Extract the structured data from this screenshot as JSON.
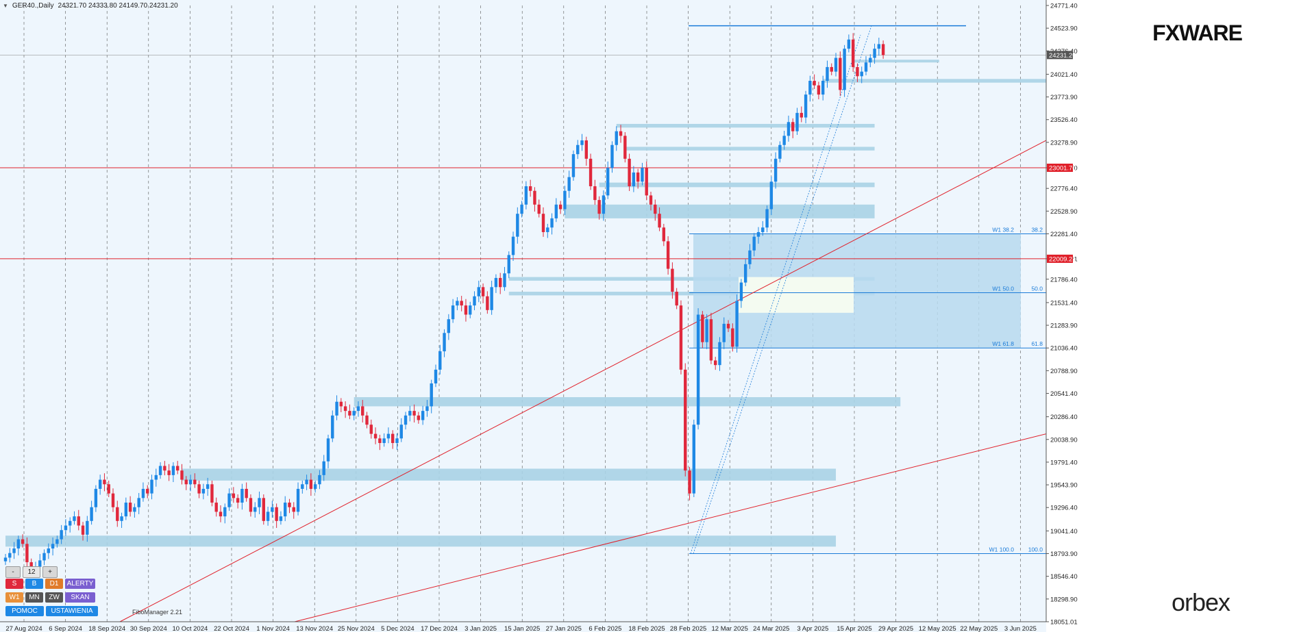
{
  "header": {
    "symbol": "GER40.,Daily",
    "ohlc": "24321.70 24333.80 24149.70 24231.20"
  },
  "colors": {
    "bull": "#1e88e5",
    "bear": "#e0283c",
    "zone": "#a9d3e6",
    "fib_zone": "#b7d9ee",
    "trend": "#e0202a",
    "fib_line": "#1a7bd8"
  },
  "price_levels": {
    "current": "24231.20",
    "level_1": "23001.70",
    "level_2": "22009.21"
  },
  "fib_labels": [
    {
      "left": "W1 38.2",
      "right": "38.2",
      "value": 22281
    },
    {
      "left": "W1 50.0",
      "right": "50.0",
      "value": 21639
    },
    {
      "left": "W1 61.8",
      "right": "61.8",
      "value": 21036
    },
    {
      "left": "W1 100.0",
      "right": "100.0",
      "value": 18794
    }
  ],
  "toolbar": {
    "minus": "-",
    "period": "12",
    "plus": "+",
    "s": "S",
    "b": "B",
    "d1": "D1",
    "alerty": "ALERTY",
    "w1": "W1",
    "mn": "MN",
    "zw": "ZW",
    "skan": "SKAN",
    "pomoc": "POMOC",
    "ustawienia": "USTAWIENIA"
  },
  "brand_top": "FXWARE",
  "brand_bottom": "orbex",
  "file_manager": "FiboManager 2.21",
  "chart_data": {
    "type": "candlestick",
    "title": "GER40.,Daily",
    "ylim": [
      18051.01,
      24771.4
    ],
    "y_ticks": [
      "24771.40",
      "24523.90",
      "24276.40",
      "24021.40",
      "23773.90",
      "23526.40",
      "23278.90",
      "23001.70",
      "22776.40",
      "22528.90",
      "22281.40",
      "22009.21",
      "21786.40",
      "21531.40",
      "21283.90",
      "21036.40",
      "20788.90",
      "20541.40",
      "20286.40",
      "20038.90",
      "19791.40",
      "19543.90",
      "19296.40",
      "19041.40",
      "18793.90",
      "18546.40",
      "18298.90",
      "18051.01"
    ],
    "x_ticks": [
      "27 Aug 2024",
      "6 Sep 2024",
      "18 Sep 2024",
      "30 Sep 2024",
      "10 Oct 2024",
      "22 Oct 2024",
      "1 Nov 2024",
      "13 Nov 2024",
      "25 Nov 2024",
      "5 Dec 2024",
      "17 Dec 2024",
      "3 Jan 2025",
      "15 Jan 2025",
      "27 Jan 2025",
      "6 Feb 2025",
      "18 Feb 2025",
      "28 Feb 2025",
      "12 Mar 2025",
      "24 Mar 2025",
      "3 Apr 2025",
      "15 Apr 2025",
      "29 Apr 2025",
      "12 May 2025",
      "22 May 2025",
      "3 Jun 2025"
    ],
    "grid": true,
    "closes": [
      18750,
      18800,
      18850,
      18950,
      18900,
      18700,
      18650,
      18650,
      18720,
      18800,
      18850,
      18900,
      18950,
      19050,
      19100,
      19150,
      19200,
      19100,
      19000,
      19150,
      19300,
      19500,
      19600,
      19550,
      19450,
      19300,
      19150,
      19200,
      19350,
      19250,
      19300,
      19400,
      19500,
      19450,
      19600,
      19650,
      19750,
      19700,
      19650,
      19750,
      19700,
      19600,
      19550,
      19600,
      19550,
      19450,
      19500,
      19550,
      19350,
      19250,
      19200,
      19300,
      19450,
      19400,
      19350,
      19500,
      19400,
      19250,
      19300,
      19400,
      19150,
      19250,
      19300,
      19150,
      19200,
      19350,
      19300,
      19250,
      19500,
      19550,
      19600,
      19500,
      19550,
      19650,
      19800,
      20050,
      20300,
      20450,
      20400,
      20350,
      20300,
      20350,
      20400,
      20300,
      20200,
      20100,
      20050,
      20000,
      20050,
      20100,
      20000,
      20050,
      20200,
      20300,
      20350,
      20300,
      20250,
      20350,
      20400,
      20650,
      20800,
      21000,
      21200,
      21350,
      21500,
      21550,
      21500,
      21400,
      21500,
      21600,
      21700,
      21600,
      21450,
      21700,
      21800,
      21700,
      21850,
      22050,
      22250,
      22500,
      22600,
      22800,
      22750,
      22600,
      22500,
      22300,
      22350,
      22450,
      22600,
      22550,
      22750,
      22900,
      23150,
      23250,
      23300,
      23100,
      22800,
      22650,
      22500,
      22700,
      23000,
      23250,
      23400,
      23350,
      23100,
      22800,
      22950,
      22850,
      23000,
      22700,
      22600,
      22500,
      22350,
      22200,
      21900,
      21650,
      21500,
      20800,
      19700,
      19450,
      20200,
      21400,
      21100,
      21350,
      20900,
      20850,
      21100,
      21300,
      21250,
      21050,
      21550,
      21750,
      21950,
      22100,
      22250,
      22300,
      22350,
      22550,
      22850,
      23100,
      23250,
      23350,
      23500,
      23400,
      23600,
      23550,
      23800,
      23950,
      23900,
      23800,
      23950,
      24100,
      24050,
      24200,
      23850,
      24300,
      24400,
      24100,
      24000,
      24050,
      24150,
      24200,
      24300,
      24350,
      24230
    ],
    "support_zones": [
      {
        "from_index": 142,
        "to_index": 202,
        "lo": 23440,
        "hi": 23480
      },
      {
        "from_index": 144,
        "to_index": 202,
        "lo": 23190,
        "hi": 23230
      },
      {
        "from_index": 138,
        "to_index": 202,
        "lo": 22790,
        "hi": 22840
      },
      {
        "from_index": 130,
        "to_index": 202,
        "lo": 22450,
        "hi": 22600
      },
      {
        "from_index": 117,
        "to_index": 202,
        "lo": 21770,
        "hi": 21810
      },
      {
        "from_index": 117,
        "to_index": 202,
        "lo": 21610,
        "hi": 21650
      },
      {
        "from_index": 81,
        "to_index": 208,
        "lo": 20400,
        "hi": 20500
      },
      {
        "from_index": 41,
        "to_index": 193,
        "lo": 19590,
        "hi": 19720
      },
      {
        "from_index": 0,
        "to_index": 193,
        "lo": 18870,
        "hi": 18990
      },
      {
        "from_index": 190,
        "to_index": 250,
        "lo": 23930,
        "hi": 23970
      },
      {
        "from_index": 197,
        "to_index": 217,
        "lo": 24150,
        "hi": 24180
      }
    ],
    "resistance_line": {
      "from_index": 165,
      "to_index": 231,
      "value": 24550
    },
    "trend_lines": [
      {
        "from_index": 28,
        "from_value": 18000,
        "to_index": 250,
        "to_value": 23300
      },
      {
        "from_index": 70,
        "from_value": 18000,
        "to_index": 250,
        "to_value": 20100
      }
    ],
    "horizontal_levels": [
      23001.7,
      22009.21
    ]
  }
}
